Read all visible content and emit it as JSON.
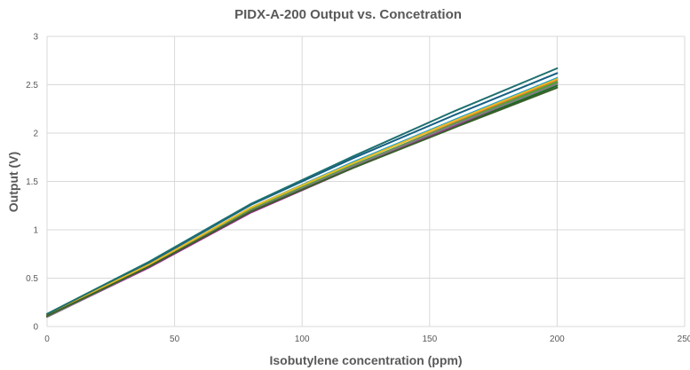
{
  "chart_data": {
    "type": "line",
    "title": "PIDX-A-200 Output vs. Concetration",
    "xlabel": "Isobutylene concentration (ppm)",
    "ylabel": "Output (V)",
    "xlim": [
      0,
      250
    ],
    "ylim": [
      0,
      3
    ],
    "x_ticks": [
      0,
      50,
      100,
      150,
      200,
      250
    ],
    "y_ticks": [
      0,
      0.5,
      1,
      1.5,
      2,
      2.5,
      3
    ],
    "x_tick_labels": [
      "0",
      "50",
      "100",
      "150",
      "200",
      "250"
    ],
    "y_tick_labels": [
      "0",
      "0.5",
      "1",
      "1.5",
      "2",
      "2.5",
      "3"
    ],
    "grid": true,
    "legend": "none",
    "x": [
      0,
      40,
      80,
      120,
      160,
      200
    ],
    "series": [
      {
        "color": "#156082",
        "values": [
          0.12,
          0.66,
          1.26,
          1.74,
          2.19,
          2.62
        ]
      },
      {
        "color": "#e97132",
        "values": [
          0.11,
          0.63,
          1.21,
          1.66,
          2.11,
          2.55
        ]
      },
      {
        "color": "#196b24",
        "values": [
          0.1,
          0.62,
          1.19,
          1.64,
          2.07,
          2.49
        ]
      },
      {
        "color": "#0f9ed5",
        "values": [
          0.12,
          0.64,
          1.23,
          1.7,
          2.14,
          2.57
        ]
      },
      {
        "color": "#a02b93",
        "values": [
          0.1,
          0.61,
          1.18,
          1.64,
          2.08,
          2.52
        ]
      },
      {
        "color": "#4ea72e",
        "values": [
          0.11,
          0.63,
          1.21,
          1.67,
          2.1,
          2.53
        ]
      },
      {
        "color": "#e8b923",
        "values": [
          0.12,
          0.64,
          1.23,
          1.69,
          2.13,
          2.56
        ]
      },
      {
        "color": "#7f7f7f",
        "values": [
          0.1,
          0.62,
          1.2,
          1.66,
          2.09,
          2.51
        ]
      },
      {
        "color": "#1f6f6f",
        "values": [
          0.13,
          0.67,
          1.27,
          1.76,
          2.23,
          2.67
        ]
      },
      {
        "color": "#3a5f2a",
        "values": [
          0.11,
          0.62,
          1.19,
          1.64,
          2.06,
          2.47
        ]
      }
    ]
  }
}
